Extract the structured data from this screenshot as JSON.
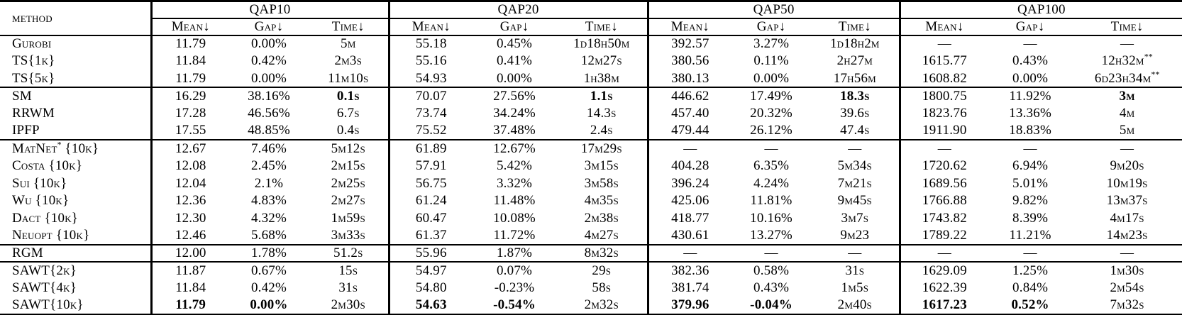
{
  "colors": {
    "text": "#000000",
    "background": "#ffffff",
    "rule": "#000000"
  },
  "table": {
    "header": {
      "method": "method",
      "groups": [
        {
          "label": "QAP10"
        },
        {
          "label": "QAP20"
        },
        {
          "label": "QAP50"
        },
        {
          "label": "QAP100"
        }
      ],
      "sub": {
        "mean": "Mean↓",
        "gap": "Gap↓",
        "time": "Time↓"
      }
    },
    "rows": [
      {
        "method": "Gurobi",
        "cells": [
          "11.79",
          "0.00%",
          "5m",
          "55.18",
          "0.45%",
          "1d18h50m",
          "392.57",
          "3.27%",
          "1d18h2m",
          "—",
          "—",
          "—"
        ]
      },
      {
        "method": "TS{1k}",
        "cells": [
          "11.84",
          "0.42%",
          "2m3s",
          "55.16",
          "0.41%",
          "12m27s",
          "380.56",
          "0.11%",
          "2h27m",
          "1615.77",
          "0.43%",
          "12h32m**"
        ]
      },
      {
        "method": "TS{5k}",
        "cells": [
          "11.79",
          "0.00%",
          "11m10s",
          "54.93",
          "0.00%",
          "1h38m",
          "380.13",
          "0.00%",
          "17h56m",
          "1608.82",
          "0.00%",
          "6d23h34m**"
        ],
        "rule_after": true
      },
      {
        "method": "SM",
        "cells": [
          "16.29",
          "38.16%",
          "0.1s",
          "70.07",
          "27.56%",
          "1.1s",
          "446.62",
          "17.49%",
          "18.3s",
          "1800.75",
          "11.92%",
          "3m"
        ],
        "bold": [
          2,
          5,
          8,
          11
        ]
      },
      {
        "method": "RRWM",
        "cells": [
          "17.28",
          "46.56%",
          "6.7s",
          "73.74",
          "34.24%",
          "14.3s",
          "457.40",
          "20.32%",
          "39.6s",
          "1823.76",
          "13.36%",
          "4m"
        ]
      },
      {
        "method": "IPFP",
        "cells": [
          "17.55",
          "48.85%",
          "0.4s",
          "75.52",
          "37.48%",
          "2.4s",
          "479.44",
          "26.12%",
          "47.4s",
          "1911.90",
          "18.83%",
          "5m"
        ],
        "rule_after": true
      },
      {
        "method": "MatNet* {10k}",
        "cells": [
          "12.67",
          "7.46%",
          "5m12s",
          "61.89",
          "12.67%",
          "17m29s",
          "—",
          "—",
          "—",
          "—",
          "—",
          "—"
        ]
      },
      {
        "method": "Costa {10k}",
        "cells": [
          "12.08",
          "2.45%",
          "2m15s",
          "57.91",
          "5.42%",
          "3m15s",
          "404.28",
          "6.35%",
          "5m34s",
          "1720.62",
          "6.94%",
          "9m20s"
        ]
      },
      {
        "method": "Sui {10k}",
        "cells": [
          "12.04",
          "2.1%",
          "2m25s",
          "56.75",
          "3.32%",
          "3m58s",
          "396.24",
          "4.24%",
          "7m21s",
          "1689.56",
          "5.01%",
          "10m19s"
        ]
      },
      {
        "method": "Wu {10k}",
        "cells": [
          "12.36",
          "4.83%",
          "2m27s",
          "61.24",
          "11.48%",
          "4m35s",
          "425.06",
          "11.81%",
          "9m45s",
          "1766.88",
          "9.82%",
          "13m37s"
        ]
      },
      {
        "method": "Dact {10k}",
        "cells": [
          "12.30",
          "4.32%",
          "1m59s",
          "60.47",
          "10.08%",
          "2m38s",
          "418.77",
          "10.16%",
          "3m7s",
          "1743.82",
          "8.39%",
          "4m17s"
        ]
      },
      {
        "method": "Neuopt {10k}",
        "cells": [
          "12.46",
          "5.68%",
          "3m33s",
          "61.37",
          "11.72%",
          "4m27s",
          "430.61",
          "13.27%",
          "9m23",
          "1789.22",
          "11.21%",
          "14m23s"
        ],
        "rule_after": true
      },
      {
        "method": "RGM",
        "cells": [
          "12.00",
          "1.78%",
          "51.2s",
          "55.96",
          "1.87%",
          "8m32s",
          "—",
          "—",
          "—",
          "—",
          "—",
          "—"
        ],
        "rule_after": true
      },
      {
        "method": "SAWT{2k}",
        "cells": [
          "11.87",
          "0.67%",
          "15s",
          "54.97",
          "0.07%",
          "29s",
          "382.36",
          "0.58%",
          "31s",
          "1629.09",
          "1.25%",
          "1m30s"
        ]
      },
      {
        "method": "SAWT{4k}",
        "cells": [
          "11.84",
          "0.42%",
          "31s",
          "54.80",
          "-0.23%",
          "58s",
          "381.74",
          "0.43%",
          "1m5s",
          "1622.39",
          "0.84%",
          "2m54s"
        ]
      },
      {
        "method": "SAWT{10k}",
        "cells": [
          "11.79",
          "0.00%",
          "2m30s",
          "54.63",
          "-0.54%",
          "2m32s",
          "379.96",
          "-0.04%",
          "2m40s",
          "1617.23",
          "0.52%",
          "7m32s"
        ],
        "bold": [
          0,
          1,
          3,
          4,
          6,
          7,
          9,
          10
        ]
      }
    ]
  }
}
